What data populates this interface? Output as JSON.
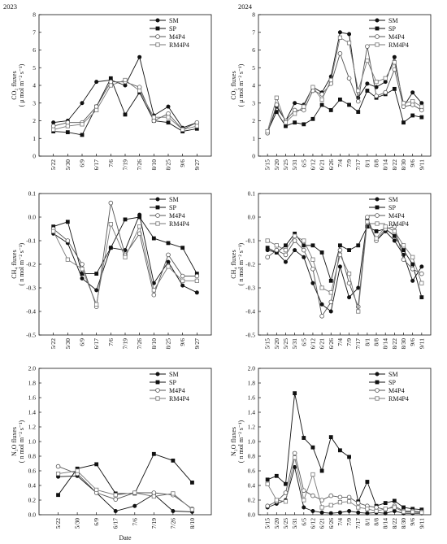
{
  "years": [
    "2023",
    "2024"
  ],
  "xlabel": "Date",
  "chart_data": [
    {
      "id": "co2-2023",
      "type": "line",
      "year": "2023",
      "ylabel": [
        "CO₂ fluxes",
        "( μ mol m⁻² s⁻¹)"
      ],
      "ylim": [
        0,
        8
      ],
      "yticks": [
        0,
        1,
        2,
        3,
        4,
        5,
        6,
        7,
        8
      ],
      "categories": [
        "5/22",
        "5/30",
        "6/9",
        "6/17",
        "7/6",
        "7/19",
        "7/26",
        "8/10",
        "8/25",
        "9/6",
        "9/27"
      ],
      "series": [
        {
          "name": "SM",
          "marker": "filled-circle",
          "values": [
            1.9,
            2.0,
            3.0,
            4.2,
            4.3,
            4.0,
            5.6,
            2.3,
            2.8,
            1.6,
            1.9
          ]
        },
        {
          "name": "SP",
          "marker": "filled-square",
          "values": [
            1.4,
            1.35,
            1.2,
            2.8,
            4.4,
            2.35,
            3.6,
            2.0,
            1.9,
            1.4,
            1.55
          ]
        },
        {
          "name": "M4P4",
          "marker": "open-circle",
          "values": [
            1.7,
            1.9,
            1.9,
            2.8,
            4.2,
            4.2,
            3.9,
            2.0,
            2.4,
            1.5,
            1.9
          ]
        },
        {
          "name": "RM4P4",
          "marker": "open-square",
          "values": [
            1.5,
            1.7,
            1.8,
            2.6,
            4.0,
            4.3,
            3.7,
            2.2,
            2.2,
            1.5,
            1.7
          ]
        }
      ]
    },
    {
      "id": "co2-2024",
      "type": "line",
      "year": "2024",
      "ylabel": [
        "CO₂ fluxes",
        "( μ mol m⁻² s⁻¹)"
      ],
      "ylim": [
        0,
        8
      ],
      "yticks": [
        0,
        1,
        2,
        3,
        4,
        5,
        6,
        7,
        8
      ],
      "categories": [
        "5/15",
        "5/20",
        "5/25",
        "5/31",
        "6/5",
        "6/12",
        "6/21",
        "6/26",
        "7/4",
        "7/9",
        "7/17",
        "8/1",
        "8/8",
        "8/14",
        "8/22",
        "8/30",
        "9/6",
        "9/11"
      ],
      "series": [
        {
          "name": "SM",
          "marker": "filled-circle",
          "values": [
            1.3,
            2.8,
            2.0,
            3.0,
            2.9,
            3.9,
            3.6,
            4.5,
            7.0,
            6.9,
            3.3,
            4.1,
            3.9,
            4.2,
            5.6,
            2.8,
            3.6,
            3.0
          ]
        },
        {
          "name": "SP",
          "marker": "filled-square",
          "values": [
            1.4,
            2.5,
            1.7,
            1.9,
            1.8,
            2.1,
            2.9,
            2.6,
            3.2,
            2.9,
            2.5,
            3.7,
            3.3,
            3.5,
            3.8,
            1.9,
            2.3,
            2.2
          ]
        },
        {
          "name": "M4P4",
          "marker": "open-circle",
          "values": [
            1.3,
            2.9,
            2.0,
            2.6,
            2.6,
            3.7,
            3.5,
            4.1,
            5.8,
            4.4,
            3.1,
            6.2,
            3.4,
            3.6,
            4.9,
            2.8,
            2.9,
            2.6
          ]
        },
        {
          "name": "RM4P4",
          "marker": "open-square",
          "values": [
            1.4,
            3.3,
            1.9,
            2.4,
            2.8,
            3.9,
            3.2,
            4.3,
            6.7,
            6.4,
            3.7,
            5.4,
            4.2,
            4.4,
            5.3,
            3.0,
            3.1,
            2.8
          ]
        }
      ]
    },
    {
      "id": "ch4-2023",
      "type": "line",
      "year": "2023",
      "ylabel": [
        "CH₄ fluxes",
        "( n mol m⁻² s⁻¹)"
      ],
      "ylim": [
        -0.5,
        0.1
      ],
      "yticks": [
        -0.5,
        -0.4,
        -0.3,
        -0.2,
        -0.1,
        0.0,
        0.1
      ],
      "categories": [
        "5/22",
        "5/30",
        "6/9",
        "6/17",
        "7/6",
        "7/19",
        "7/26",
        "8/10",
        "8/25",
        "9/6",
        "9/27"
      ],
      "series": [
        {
          "name": "SM",
          "marker": "filled-circle",
          "values": [
            -0.07,
            -0.11,
            -0.26,
            -0.31,
            -0.13,
            -0.14,
            0.01,
            -0.28,
            -0.19,
            -0.29,
            -0.32
          ]
        },
        {
          "name": "SP",
          "marker": "filled-square",
          "values": [
            -0.04,
            -0.02,
            -0.24,
            -0.24,
            -0.13,
            -0.01,
            0.0,
            -0.09,
            -0.11,
            -0.13,
            -0.24
          ]
        },
        {
          "name": "M4P4",
          "marker": "open-circle",
          "values": [
            -0.05,
            -0.1,
            -0.2,
            -0.38,
            0.06,
            -0.16,
            -0.07,
            -0.33,
            -0.16,
            -0.25,
            -0.25
          ]
        },
        {
          "name": "RM4P4",
          "marker": "open-square",
          "values": [
            -0.06,
            -0.18,
            -0.22,
            -0.37,
            -0.03,
            -0.17,
            -0.04,
            -0.31,
            -0.21,
            -0.27,
            -0.27
          ]
        }
      ]
    },
    {
      "id": "ch4-2024",
      "type": "line",
      "year": "2024",
      "ylabel": [
        "CH₄ fluxes",
        "( n mol m⁻² s⁻¹)"
      ],
      "ylim": [
        -0.5,
        0.1
      ],
      "yticks": [
        -0.5,
        -0.4,
        -0.3,
        -0.2,
        -0.1,
        0.0,
        0.1
      ],
      "categories": [
        "5/15",
        "5/20",
        "5/25",
        "5/31",
        "6/5",
        "6/12",
        "6/21",
        "6/26",
        "7/4",
        "7/9",
        "7/17",
        "8/1",
        "8/8",
        "8/14",
        "8/22",
        "8/30",
        "9/6",
        "9/11"
      ],
      "series": [
        {
          "name": "SM",
          "marker": "filled-circle",
          "values": [
            -0.14,
            -0.15,
            -0.19,
            -0.14,
            -0.17,
            -0.28,
            -0.37,
            -0.4,
            -0.21,
            -0.34,
            -0.3,
            -0.01,
            -0.1,
            -0.06,
            -0.1,
            -0.16,
            -0.27,
            -0.21
          ]
        },
        {
          "name": "SP",
          "marker": "filled-square",
          "values": [
            -0.13,
            -0.15,
            -0.12,
            -0.07,
            -0.12,
            -0.12,
            -0.15,
            -0.27,
            -0.12,
            -0.14,
            -0.12,
            -0.04,
            -0.06,
            -0.05,
            -0.08,
            -0.14,
            -0.2,
            -0.34
          ]
        },
        {
          "name": "M4P4",
          "marker": "open-circle",
          "values": [
            -0.17,
            -0.14,
            -0.16,
            -0.1,
            -0.14,
            -0.22,
            -0.42,
            -0.36,
            -0.14,
            -0.28,
            -0.38,
            0.0,
            -0.1,
            -0.05,
            -0.04,
            -0.18,
            -0.22,
            -0.24
          ]
        },
        {
          "name": "RM4P4",
          "marker": "open-square",
          "values": [
            -0.1,
            -0.12,
            -0.14,
            -0.08,
            -0.1,
            -0.18,
            -0.3,
            -0.32,
            -0.16,
            -0.24,
            -0.4,
            -0.02,
            -0.09,
            -0.04,
            -0.06,
            -0.12,
            -0.17,
            -0.28
          ]
        }
      ]
    },
    {
      "id": "n2o-2023",
      "type": "line",
      "year": "2023",
      "ylabel": [
        "N₂O fluxes",
        "( n mol m⁻² s⁻¹)"
      ],
      "ylim": [
        0.0,
        2.0
      ],
      "yticks": [
        0.0,
        0.2,
        0.4,
        0.6,
        0.8,
        1.0,
        1.2,
        1.4,
        1.6,
        1.8,
        2.0
      ],
      "categories": [
        "5/22",
        "5/30",
        "6/9",
        "6/17",
        "7/6",
        "7/19",
        "7/26",
        "8/10"
      ],
      "series": [
        {
          "name": "SM",
          "marker": "filled-circle",
          "values": [
            0.52,
            0.53,
            0.3,
            0.05,
            0.12,
            0.28,
            0.05,
            0.04
          ]
        },
        {
          "name": "SP",
          "marker": "filled-square",
          "values": [
            0.27,
            0.63,
            0.69,
            0.29,
            0.29,
            0.83,
            0.74,
            0.44
          ]
        },
        {
          "name": "M4P4",
          "marker": "open-circle",
          "values": [
            0.66,
            0.56,
            0.3,
            0.21,
            0.3,
            0.3,
            0.27,
            0.08
          ]
        },
        {
          "name": "RM4P4",
          "marker": "open-square",
          "values": [
            0.56,
            0.6,
            0.34,
            0.27,
            0.3,
            0.25,
            0.29,
            0.07
          ]
        }
      ]
    },
    {
      "id": "n2o-2024",
      "type": "line",
      "year": "2024",
      "ylabel": [
        "N₂O fluxes",
        "( n mol m⁻² s⁻¹)"
      ],
      "ylim": [
        0.0,
        2.0
      ],
      "yticks": [
        0.0,
        0.2,
        0.4,
        0.6,
        0.8,
        1.0,
        1.2,
        1.4,
        1.6,
        1.8,
        2.0
      ],
      "categories": [
        "5/15",
        "5/20",
        "5/25",
        "5/31",
        "6/5",
        "6/12",
        "6/21",
        "6/26",
        "7/4",
        "7/9",
        "7/17",
        "8/1",
        "8/8",
        "8/14",
        "8/22",
        "8/30",
        "9/6",
        "9/11"
      ],
      "series": [
        {
          "name": "SM",
          "marker": "filled-circle",
          "values": [
            0.1,
            0.15,
            0.2,
            0.65,
            0.1,
            0.05,
            0.03,
            0.02,
            0.03,
            0.05,
            0.03,
            0.02,
            0.03,
            0.02,
            0.05,
            0.02,
            0.02,
            0.02
          ]
        },
        {
          "name": "SP",
          "marker": "filled-square",
          "values": [
            0.48,
            0.53,
            0.42,
            1.66,
            1.05,
            0.92,
            0.6,
            1.06,
            0.88,
            0.79,
            0.18,
            0.45,
            0.12,
            0.16,
            0.19,
            0.1,
            0.08,
            0.07
          ]
        },
        {
          "name": "M4P4",
          "marker": "open-circle",
          "values": [
            0.12,
            0.18,
            0.3,
            0.84,
            0.33,
            0.26,
            0.2,
            0.26,
            0.24,
            0.24,
            0.16,
            0.12,
            0.1,
            0.07,
            0.12,
            0.05,
            0.05,
            0.04
          ]
        },
        {
          "name": "RM4P4",
          "marker": "open-square",
          "values": [
            0.42,
            0.2,
            0.18,
            0.78,
            0.2,
            0.55,
            0.1,
            0.13,
            0.17,
            0.18,
            0.1,
            0.08,
            0.05,
            0.08,
            0.1,
            0.04,
            0.04,
            0.03
          ]
        }
      ]
    }
  ]
}
